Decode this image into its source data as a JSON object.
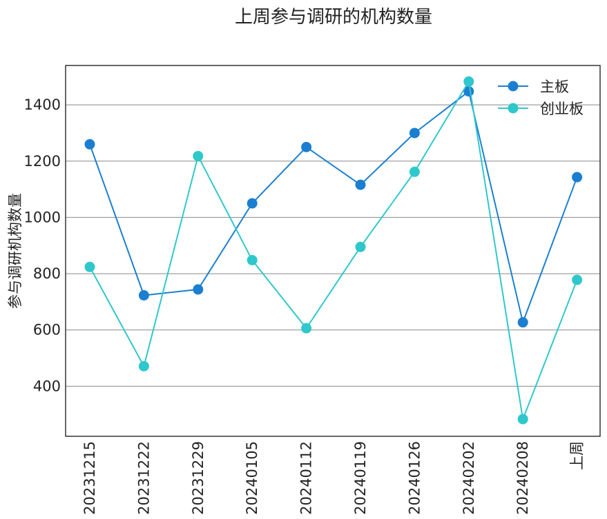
{
  "chart_data": {
    "type": "line",
    "title": "上周参与调研的机构数量",
    "xlabel": "",
    "ylabel": "参与调研机构数量",
    "categories": [
      "20231215",
      "20231222",
      "20231229",
      "20240105",
      "20240112",
      "20240119",
      "20240126",
      "20240202",
      "20240208",
      "上周"
    ],
    "ylim": [
      222,
      1540
    ],
    "yticks": [
      400,
      600,
      800,
      1000,
      1200,
      1400
    ],
    "grid": "horizontal",
    "legend_position": "top-right",
    "series": [
      {
        "name": "主板",
        "color": "#1a7fd1",
        "values": [
          1260,
          723,
          744,
          1050,
          1250,
          1116,
          1300,
          1448,
          627,
          1143
        ]
      },
      {
        "name": "创业板",
        "color": "#2ec8cc",
        "values": [
          824,
          471,
          1218,
          848,
          606,
          895,
          1162,
          1483,
          283,
          778
        ]
      }
    ]
  }
}
